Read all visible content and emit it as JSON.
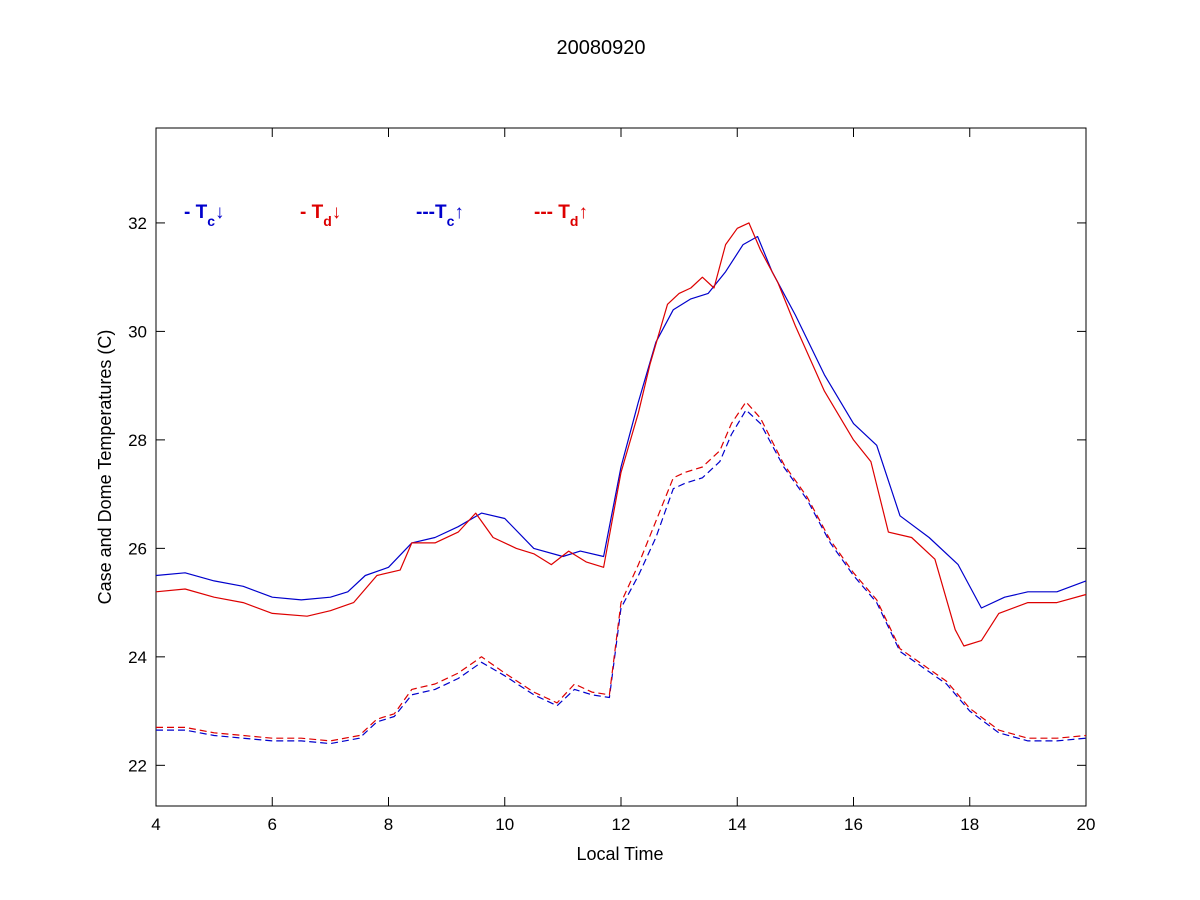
{
  "chart_data": {
    "type": "line",
    "title": "20080920",
    "xlabel": "Local Time",
    "ylabel": "Case and Dome Temperatures (C)",
    "xlim": [
      4,
      20
    ],
    "ylim": [
      21.25,
      33.75
    ],
    "xticks": [
      4,
      6,
      8,
      10,
      12,
      14,
      16,
      18,
      20
    ],
    "yticks": [
      22,
      24,
      26,
      28,
      30,
      32
    ],
    "grid": false,
    "legend_placement": "top-left, inside axes",
    "series": [
      {
        "legend": {
          "prefix": "- T",
          "sub": "c",
          "arrow": "↓"
        },
        "color": "#0000cc",
        "dash": "solid",
        "x": [
          4.0,
          4.5,
          5.0,
          5.5,
          6.0,
          6.5,
          7.0,
          7.3,
          7.6,
          8.0,
          8.4,
          8.8,
          9.2,
          9.6,
          10.0,
          10.5,
          11.0,
          11.3,
          11.7,
          12.0,
          12.3,
          12.6,
          12.9,
          13.2,
          13.5,
          13.8,
          14.1,
          14.35,
          14.6,
          15.0,
          15.5,
          16.0,
          16.4,
          16.8,
          17.3,
          17.8,
          18.2,
          18.6,
          19.0,
          19.5,
          20.0
        ],
        "values": [
          25.5,
          25.55,
          25.4,
          25.3,
          25.1,
          25.05,
          25.1,
          25.2,
          25.5,
          25.65,
          26.1,
          26.2,
          26.4,
          26.65,
          26.55,
          26.0,
          25.85,
          25.95,
          25.85,
          27.5,
          28.7,
          29.8,
          30.4,
          30.6,
          30.7,
          31.1,
          31.6,
          31.75,
          31.1,
          30.3,
          29.2,
          28.3,
          27.9,
          26.6,
          26.2,
          25.7,
          24.9,
          25.1,
          25.2,
          25.2,
          25.4
        ]
      },
      {
        "legend": {
          "prefix": "- T",
          "sub": "d",
          "arrow": "↓"
        },
        "color": "#dd0000",
        "dash": "solid",
        "x": [
          4.0,
          4.5,
          5.0,
          5.5,
          6.0,
          6.6,
          7.0,
          7.4,
          7.8,
          8.2,
          8.4,
          8.8,
          9.2,
          9.5,
          9.8,
          10.2,
          10.5,
          10.8,
          11.1,
          11.4,
          11.7,
          12.0,
          12.3,
          12.5,
          12.8,
          13.0,
          13.2,
          13.4,
          13.6,
          13.8,
          14.0,
          14.2,
          14.4,
          14.7,
          15.0,
          15.5,
          16.0,
          16.3,
          16.6,
          17.0,
          17.4,
          17.75,
          17.9,
          18.2,
          18.5,
          19.0,
          19.5,
          20.0
        ],
        "values": [
          25.2,
          25.25,
          25.1,
          25.0,
          24.8,
          24.75,
          24.85,
          25.0,
          25.5,
          25.6,
          26.1,
          26.1,
          26.3,
          26.65,
          26.2,
          26.0,
          25.9,
          25.7,
          25.95,
          25.75,
          25.65,
          27.4,
          28.5,
          29.4,
          30.5,
          30.7,
          30.8,
          31.0,
          30.8,
          31.6,
          31.9,
          32.0,
          31.5,
          30.9,
          30.1,
          28.9,
          28.0,
          27.6,
          26.3,
          26.2,
          25.8,
          24.5,
          24.2,
          24.3,
          24.8,
          25.0,
          25.0,
          25.15
        ]
      },
      {
        "legend": {
          "prefix": "---T",
          "sub": "c",
          "arrow": "↑"
        },
        "color": "#0000cc",
        "dash": "dashed",
        "x": [
          4.0,
          4.5,
          5.0,
          5.5,
          6.0,
          6.5,
          7.0,
          7.5,
          7.8,
          8.1,
          8.4,
          8.8,
          9.2,
          9.6,
          10.0,
          10.5,
          10.9,
          11.2,
          11.5,
          11.8,
          12.0,
          12.3,
          12.6,
          12.9,
          13.1,
          13.4,
          13.7,
          13.9,
          14.15,
          14.4,
          14.8,
          15.2,
          15.6,
          16.0,
          16.4,
          16.8,
          17.2,
          17.6,
          18.0,
          18.5,
          19.0,
          19.5,
          20.0
        ],
        "values": [
          22.65,
          22.65,
          22.55,
          22.5,
          22.45,
          22.45,
          22.4,
          22.5,
          22.8,
          22.9,
          23.3,
          23.4,
          23.6,
          23.9,
          23.65,
          23.3,
          23.1,
          23.4,
          23.3,
          23.25,
          24.9,
          25.5,
          26.2,
          27.1,
          27.2,
          27.3,
          27.6,
          28.1,
          28.55,
          28.3,
          27.5,
          26.9,
          26.1,
          25.5,
          25.0,
          24.1,
          23.8,
          23.5,
          23.0,
          22.6,
          22.45,
          22.45,
          22.5
        ]
      },
      {
        "legend": {
          "prefix": "--- T",
          "sub": "d",
          "arrow": "↑"
        },
        "color": "#dd0000",
        "dash": "dashed",
        "x": [
          4.0,
          4.5,
          5.0,
          5.5,
          6.0,
          6.5,
          7.0,
          7.5,
          7.8,
          8.1,
          8.4,
          8.8,
          9.2,
          9.6,
          10.0,
          10.5,
          10.9,
          11.2,
          11.5,
          11.8,
          12.0,
          12.3,
          12.6,
          12.9,
          13.1,
          13.4,
          13.7,
          13.9,
          14.15,
          14.4,
          14.8,
          15.2,
          15.6,
          16.0,
          16.4,
          16.8,
          17.2,
          17.6,
          18.0,
          18.5,
          19.0,
          19.5,
          20.0
        ],
        "values": [
          22.7,
          22.7,
          22.6,
          22.55,
          22.5,
          22.5,
          22.45,
          22.55,
          22.85,
          22.95,
          23.4,
          23.5,
          23.7,
          24.0,
          23.7,
          23.35,
          23.15,
          23.5,
          23.35,
          23.3,
          25.0,
          25.7,
          26.5,
          27.3,
          27.4,
          27.5,
          27.8,
          28.3,
          28.7,
          28.4,
          27.55,
          26.95,
          26.15,
          25.55,
          25.05,
          24.15,
          23.85,
          23.55,
          23.05,
          22.65,
          22.5,
          22.5,
          22.55
        ]
      }
    ]
  }
}
